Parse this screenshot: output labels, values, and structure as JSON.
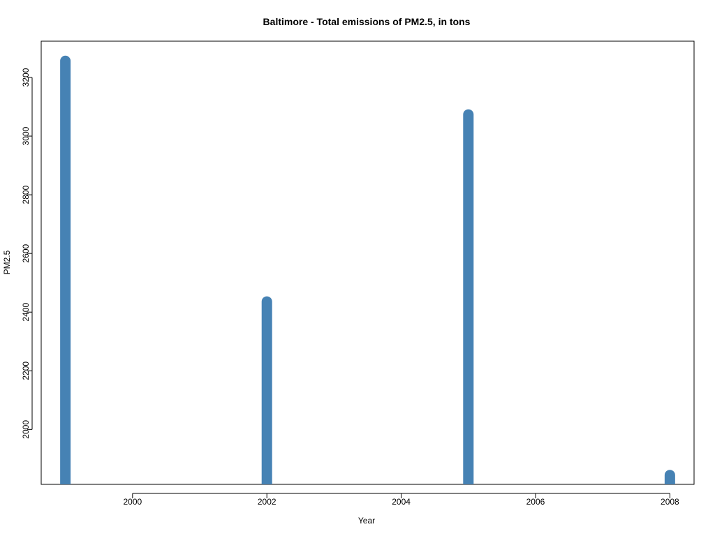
{
  "chart_data": {
    "type": "bar",
    "title": "Baltimore - Total emissions of PM2.5, in tons",
    "xlabel": "Year",
    "ylabel": "PM2.5",
    "x": [
      1999,
      2002,
      2005,
      2008
    ],
    "values": [
      3274.2,
      2453.9,
      3091.4,
      1862.3
    ],
    "xlim": [
      1998.64,
      2008.36
    ],
    "ylim": [
      1812.87,
      3323.63
    ],
    "x_ticks": [
      2000,
      2002,
      2004,
      2006,
      2008
    ],
    "x_tick_labels": [
      "2000",
      "2002",
      "2004",
      "2006",
      "2008"
    ],
    "y_ticks": [
      2000,
      2200,
      2400,
      2600,
      2800,
      3000,
      3200
    ],
    "y_tick_labels": [
      "2000",
      "2200",
      "2400",
      "2600",
      "2800",
      "3000",
      "3200"
    ],
    "color": "#4682b4",
    "grid": false,
    "legend": "none"
  }
}
